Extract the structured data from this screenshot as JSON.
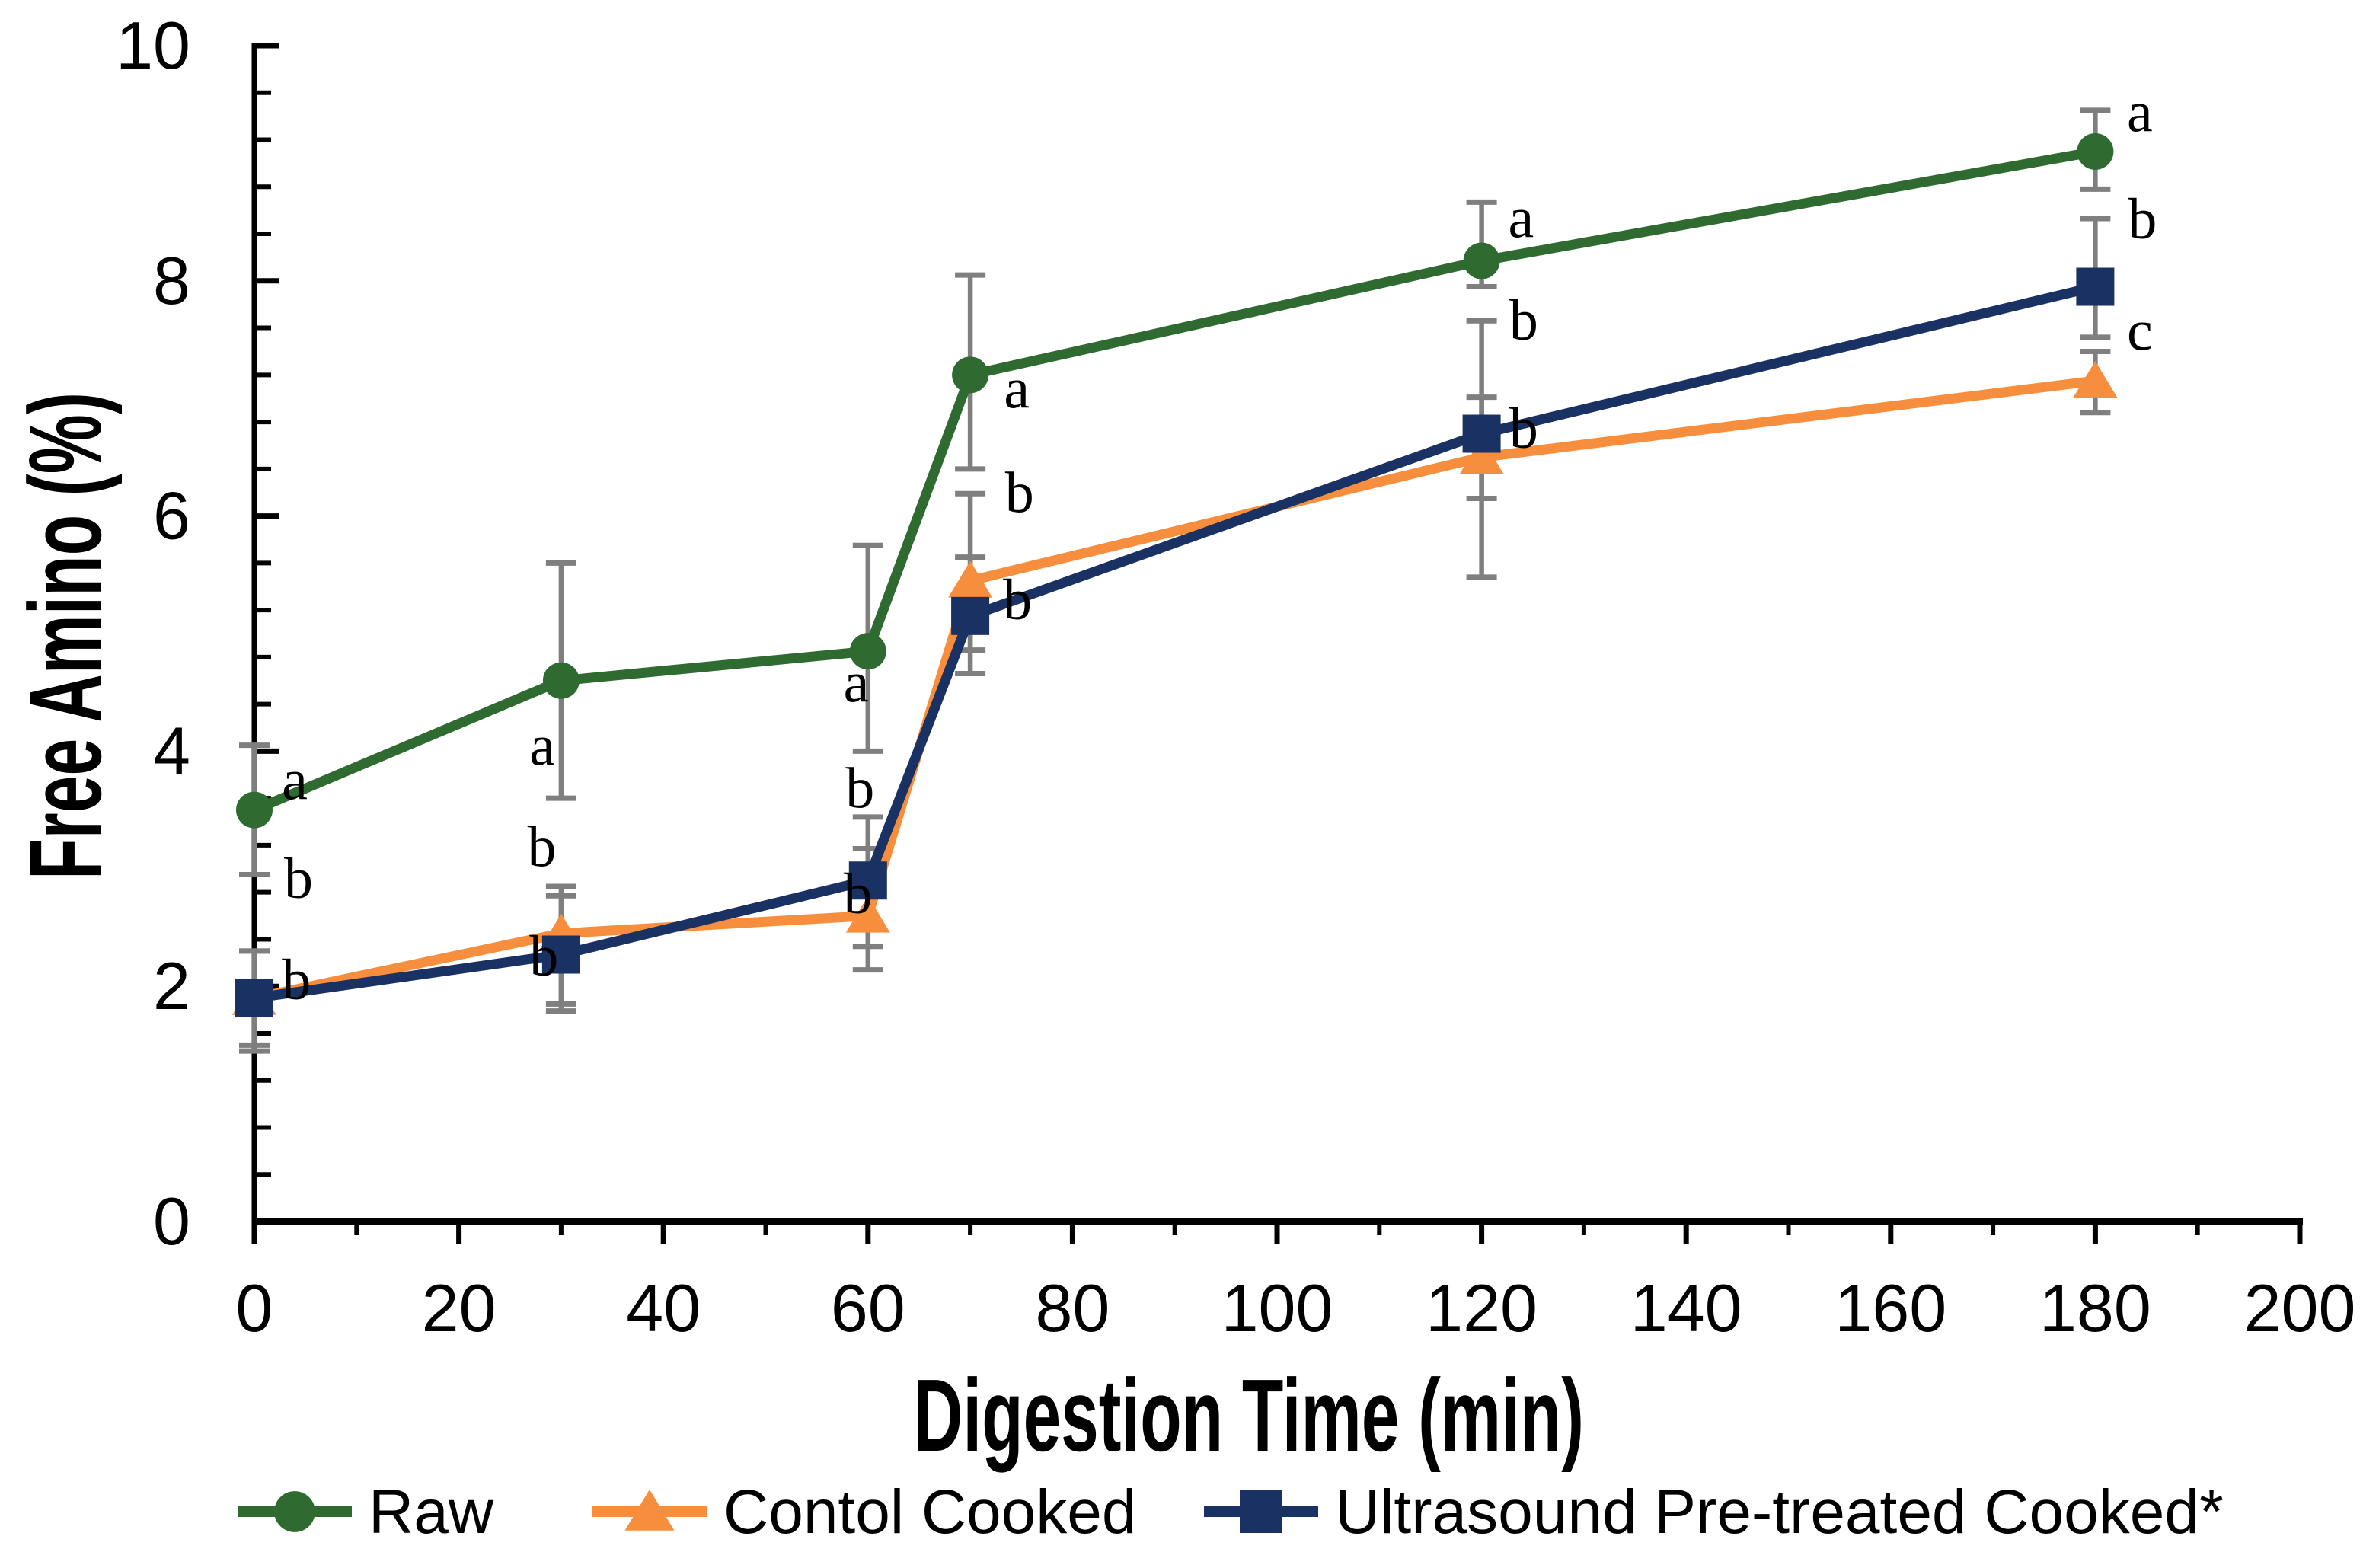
{
  "chart_data": {
    "type": "line",
    "title": "",
    "xlabel": "Digestion Time (min)",
    "ylabel": "Free Amino (%)",
    "xlim": [
      0,
      200
    ],
    "ylim": [
      0,
      10
    ],
    "x_major_tick_step": 20,
    "x_minor_tick_step": 10,
    "y_major_tick_step": 2,
    "y_minor_tick_step": 0.4,
    "x_ticks": [
      0,
      20,
      40,
      60,
      80,
      100,
      120,
      140,
      160,
      180,
      200
    ],
    "y_ticks": [
      0,
      2,
      4,
      6,
      8,
      10
    ],
    "grid": false,
    "legend_position": "bottom",
    "error_bar_color": "#7F7F7F",
    "x": [
      0,
      30,
      60,
      70,
      120,
      180
    ],
    "series": [
      {
        "name": "Raw",
        "marker": "circle",
        "color": "#2F6B30",
        "values": [
          3.5,
          4.6,
          4.85,
          7.2,
          8.17,
          9.1
        ],
        "err_up": [
          0.55,
          1.0,
          0.9,
          0.85,
          0.5,
          0.35
        ],
        "err_down": [
          0.55,
          1.0,
          0.85,
          0.8,
          0.22,
          0.32
        ],
        "letters": [
          "a",
          "a",
          "a",
          "a",
          "a",
          "a"
        ]
      },
      {
        "name": "Contol Cooked",
        "marker": "triangle",
        "color": "#F78E3D",
        "values": [
          1.9,
          2.45,
          2.6,
          5.45,
          6.5,
          7.15
        ],
        "err_up": [
          0.4,
          0.4,
          0.57,
          0.74,
          0.51,
          0.25
        ],
        "err_down": [
          0.4,
          0.6,
          0.46,
          0.59,
          1.02,
          0.27
        ],
        "letters": [
          "b",
          "b",
          "b",
          "b",
          "b",
          "c"
        ]
      },
      {
        "name": "Ultrasound Pre-treated Cooked*",
        "marker": "square",
        "color": "#1A3263",
        "values": [
          1.9,
          2.27,
          2.9,
          5.15,
          6.7,
          7.95
        ],
        "err_up": [
          0.4,
          0.5,
          0.54,
          0.5,
          0.96,
          0.58
        ],
        "err_down": [
          0.45,
          0.48,
          0.56,
          0.49,
          0.55,
          0.43
        ],
        "letters": [
          "b",
          "b",
          "b",
          "b",
          "b",
          "b"
        ]
      }
    ],
    "annotations": [
      {
        "text": "a",
        "x": 2.7,
        "y": 3.76
      },
      {
        "text": "a",
        "x": 26.9,
        "y": 4.05
      },
      {
        "text": "a",
        "x": 57.6,
        "y": 4.59
      },
      {
        "text": "a",
        "x": 73.3,
        "y": 7.09
      },
      {
        "text": "a",
        "x": 122.6,
        "y": 8.54
      },
      {
        "text": "a",
        "x": 183.1,
        "y": 9.44
      },
      {
        "text": "b",
        "x": 2.9,
        "y": 2.92
      },
      {
        "text": "b",
        "x": 26.7,
        "y": 3.19
      },
      {
        "text": "b",
        "x": 57.8,
        "y": 3.69
      },
      {
        "text": "b",
        "x": 73.4,
        "y": 6.2
      },
      {
        "text": "b",
        "x": 122.7,
        "y": 7.67
      },
      {
        "text": "b",
        "x": 183.2,
        "y": 8.53
      },
      {
        "text": "b",
        "x": 2.7,
        "y": 2.06
      },
      {
        "text": "b",
        "x": 26.9,
        "y": 2.26
      },
      {
        "text": "b",
        "x": 57.6,
        "y": 2.79
      },
      {
        "text": "b",
        "x": 73.2,
        "y": 5.29
      },
      {
        "text": "b",
        "x": 122.7,
        "y": 6.75
      },
      {
        "text": "c",
        "x": 183.1,
        "y": 7.58
      }
    ],
    "axis_color": "#000000",
    "text_color": "#000000"
  }
}
